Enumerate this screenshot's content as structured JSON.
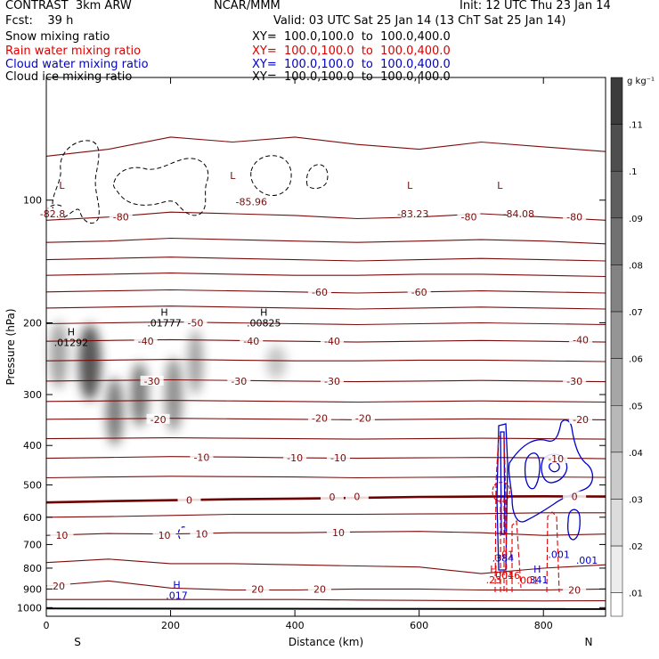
{
  "header": {
    "model": "CONTRAST  3km ARW",
    "org": "NCAR/MMM",
    "init": "Init: 12 UTC Thu 23 Jan 14",
    "fcst": "Fcst:    39 h",
    "valid": "Valid: 03 UTC Sat 25 Jan 14 (13 ChT Sat 25 Jan 14)",
    "fields": [
      {
        "name": "Snow mixing ratio",
        "xy": "XY=  100.0,100.0  to  100.0,400.0",
        "color": "#000000"
      },
      {
        "name": "Rain water mixing ratio",
        "xy": "XY=  100.0,100.0  to  100.0,400.0",
        "color": "#dd0000"
      },
      {
        "name": "Cloud water mixing ratio",
        "xy": "XY=  100.0,100.0  to  100.0,400.0",
        "color": "#0000cc"
      },
      {
        "name": "Cloud ice mixing ratio",
        "xy": "XY=  100.0,100.0  to  100.0,400.0",
        "color": "#000000"
      }
    ]
  },
  "colors": {
    "temperature": "#7a0c0c",
    "zero_isotherm": "#6e0000",
    "rain": "#dd0000",
    "cloud_water": "#0000cc",
    "ice": "#000000",
    "ground": "#000000"
  },
  "chart_data": {
    "type": "heatmap",
    "xlabel": "Distance (km)",
    "ylabel": "Pressure (hPa)",
    "xlim": [
      0,
      900
    ],
    "ylim": [
      1050,
      50
    ],
    "y_scale": "log",
    "x_ticks": [
      0,
      200,
      400,
      600,
      800
    ],
    "y_ticks": [
      100,
      200,
      300,
      400,
      500,
      600,
      700,
      800,
      900,
      1000
    ],
    "direction_labels": {
      "left": "S",
      "right": "N"
    },
    "colorbar": {
      "units": "g kg⁻¹",
      "ticks": [
        ".11",
        ".1",
        ".09",
        ".08",
        ".07",
        ".06",
        ".05",
        ".04",
        ".03",
        ".02",
        ".01"
      ]
    },
    "temperature_contours": [
      {
        "p": [
          78,
          75,
          70,
          72,
          70,
          73,
          75,
          72,
          74,
          76
        ],
        "label": ""
      },
      {
        "p": [
          112,
          110,
          107,
          108,
          109,
          111,
          110,
          108,
          110,
          112
        ],
        "label": "-80"
      },
      {
        "p": [
          127,
          126,
          124,
          125,
          126,
          127,
          126,
          125,
          126,
          128
        ],
        "label": ""
      },
      {
        "p": [
          140,
          139,
          138,
          139,
          140,
          141,
          140,
          139,
          140,
          141
        ],
        "label": ""
      },
      {
        "p": [
          153,
          152,
          151,
          152,
          153,
          153,
          152,
          152,
          153,
          154
        ],
        "label": ""
      },
      {
        "p": [
          168,
          167,
          166,
          167,
          168,
          169,
          168,
          167,
          168,
          169
        ],
        "label": "-60"
      },
      {
        "p": [
          184,
          183,
          182,
          183,
          184,
          185,
          184,
          183,
          184,
          185
        ],
        "label": ""
      },
      {
        "p": [
          201,
          200,
          199,
          200,
          201,
          202,
          201,
          200,
          201,
          202
        ],
        "label": "-50"
      },
      {
        "p": [
          222,
          221,
          220,
          221,
          222,
          223,
          222,
          221,
          222,
          223
        ],
        "label": "-40"
      },
      {
        "p": [
          248,
          247,
          246,
          247,
          248,
          248,
          247,
          247,
          248,
          249
        ],
        "label": ""
      },
      {
        "p": [
          278,
          277,
          276,
          277,
          278,
          279,
          278,
          277,
          278,
          279
        ],
        "label": "-30"
      },
      {
        "p": [
          312,
          311,
          310,
          311,
          312,
          313,
          312,
          311,
          312,
          313
        ],
        "label": ""
      },
      {
        "p": [
          345,
          344,
          343,
          344,
          345,
          346,
          345,
          344,
          345,
          346
        ],
        "label": "-20"
      },
      {
        "p": [
          385,
          384,
          383,
          384,
          385,
          386,
          385,
          384,
          385,
          386
        ],
        "label": ""
      },
      {
        "p": [
          430,
          428,
          426,
          427,
          429,
          430,
          429,
          428,
          429,
          431
        ],
        "label": "-10"
      },
      {
        "p": [
          480,
          478,
          476,
          477,
          478,
          480,
          479,
          478,
          478,
          479
        ],
        "label": ""
      },
      {
        "p": [
          552,
          548,
          545,
          542,
          540,
          538,
          535,
          534,
          533,
          534
        ],
        "label": "0"
      },
      {
        "p": [
          600,
          598,
          594,
          590,
          590,
          590,
          589,
          588,
          585,
          585
        ],
        "label": ""
      },
      {
        "p": [
          665,
          658,
          660,
          655,
          655,
          652,
          650,
          655,
          665,
          660
        ],
        "label": "10"
      },
      {
        "p": [
          775,
          760,
          780,
          780,
          785,
          790,
          795,
          825,
          800,
          785
        ],
        "label": ""
      },
      {
        "p": [
          885,
          860,
          895,
          905,
          905,
          900,
          900,
          905,
          905,
          900
        ],
        "label": "20"
      },
      {
        "p": [
          955,
          955,
          955,
          955,
          955,
          958,
          960,
          962,
          963,
          962
        ],
        "label": ""
      }
    ],
    "temperature_labels": [
      {
        "x": 10,
        "p": 108,
        "text": "-82.8"
      },
      {
        "x": 120,
        "p": 110,
        "text": "-80"
      },
      {
        "x": 330,
        "p": 101,
        "text": "-85.96"
      },
      {
        "x": 590,
        "p": 108,
        "text": "-83.23"
      },
      {
        "x": 680,
        "p": 110,
        "text": "-80"
      },
      {
        "x": 760,
        "p": 108,
        "text": "-84.08"
      },
      {
        "x": 850,
        "p": 110,
        "text": "-80"
      },
      {
        "x": 440,
        "p": 168,
        "text": "-60"
      },
      {
        "x": 600,
        "p": 168,
        "text": "-60"
      },
      {
        "x": 240,
        "p": 200,
        "text": "-50"
      },
      {
        "x": 160,
        "p": 222,
        "text": "-40"
      },
      {
        "x": 330,
        "p": 222,
        "text": "-40"
      },
      {
        "x": 460,
        "p": 222,
        "text": "-40"
      },
      {
        "x": 860,
        "p": 220,
        "text": "-40"
      },
      {
        "x": 170,
        "p": 278,
        "text": "-30"
      },
      {
        "x": 310,
        "p": 278,
        "text": "-30"
      },
      {
        "x": 460,
        "p": 278,
        "text": "-30"
      },
      {
        "x": 850,
        "p": 278,
        "text": "-30"
      },
      {
        "x": 180,
        "p": 345,
        "text": "-20"
      },
      {
        "x": 440,
        "p": 343,
        "text": "-20"
      },
      {
        "x": 510,
        "p": 343,
        "text": "-20"
      },
      {
        "x": 860,
        "p": 345,
        "text": "-20"
      },
      {
        "x": 250,
        "p": 428,
        "text": "-10"
      },
      {
        "x": 400,
        "p": 429,
        "text": "-10"
      },
      {
        "x": 470,
        "p": 429,
        "text": "-10"
      },
      {
        "x": 820,
        "p": 431,
        "text": "-10"
      },
      {
        "x": 230,
        "p": 545,
        "text": "0"
      },
      {
        "x": 460,
        "p": 535,
        "text": "0"
      },
      {
        "x": 500,
        "p": 534,
        "text": "0"
      },
      {
        "x": 850,
        "p": 534,
        "text": "0"
      },
      {
        "x": 25,
        "p": 665,
        "text": "10"
      },
      {
        "x": 190,
        "p": 665,
        "text": "10"
      },
      {
        "x": 250,
        "p": 660,
        "text": "10"
      },
      {
        "x": 470,
        "p": 655,
        "text": "10"
      },
      {
        "x": 20,
        "p": 885,
        "text": "20"
      },
      {
        "x": 340,
        "p": 900,
        "text": "20"
      },
      {
        "x": 440,
        "p": 900,
        "text": "20"
      },
      {
        "x": 850,
        "p": 905,
        "text": "20"
      }
    ],
    "snow_blobs": [
      {
        "x": 20,
        "p": 240,
        "rx": 14,
        "rp": 50,
        "v": 0.05
      },
      {
        "x": 70,
        "p": 250,
        "rx": 18,
        "rp": 60,
        "v": 0.09
      },
      {
        "x": 110,
        "p": 330,
        "rx": 14,
        "rp": 70,
        "v": 0.07
      },
      {
        "x": 150,
        "p": 300,
        "rx": 14,
        "rp": 60,
        "v": 0.07
      },
      {
        "x": 205,
        "p": 300,
        "rx": 14,
        "rp": 70,
        "v": 0.06
      },
      {
        "x": 240,
        "p": 250,
        "rx": 12,
        "rp": 50,
        "v": 0.05
      },
      {
        "x": 370,
        "p": 250,
        "rx": 16,
        "rp": 25,
        "v": 0.03
      }
    ],
    "maxima_labels": [
      {
        "x": 40,
        "p": 218,
        "h": "H",
        "text": ".01292",
        "color": "#000000"
      },
      {
        "x": 190,
        "p": 195,
        "h": "H",
        "text": ".01777",
        "color": "#000000"
      },
      {
        "x": 350,
        "p": 195,
        "h": "H",
        "text": ".00825",
        "color": "#000000"
      },
      {
        "x": 210,
        "p": 910,
        "h": "H",
        "text": ".017",
        "color": "#0000cc"
      },
      {
        "x": 720,
        "p": 832,
        "h": "H",
        "text": ".23",
        "color": "#dd0000"
      },
      {
        "x": 790,
        "p": 832,
        "h": "H",
        "text": ".341",
        "color": "#0000cc"
      }
    ],
    "low_marks": [
      {
        "x": 25,
        "p": 92,
        "text": "L"
      },
      {
        "x": 300,
        "p": 87,
        "text": "L"
      },
      {
        "x": 585,
        "p": 92,
        "text": "L"
      },
      {
        "x": 730,
        "p": 92,
        "text": "L"
      }
    ],
    "small_labels": [
      {
        "x": 825,
        "p": 740,
        "text": ".001",
        "color": "#0000cc"
      },
      {
        "x": 870,
        "p": 765,
        "text": ".001",
        "color": "#0000cc"
      },
      {
        "x": 740,
        "p": 740,
        "text": ".01",
        "color": "#dd0000"
      },
      {
        "x": 735,
        "p": 755,
        "text": ".384",
        "color": "#0000cc"
      },
      {
        "x": 735,
        "p": 833,
        "text": ".001",
        "color": "#dd0000"
      },
      {
        "x": 750,
        "p": 833,
        "text": ".46",
        "color": "#dd0000"
      },
      {
        "x": 775,
        "p": 857,
        "text": ".001",
        "color": "#dd0000"
      }
    ]
  }
}
